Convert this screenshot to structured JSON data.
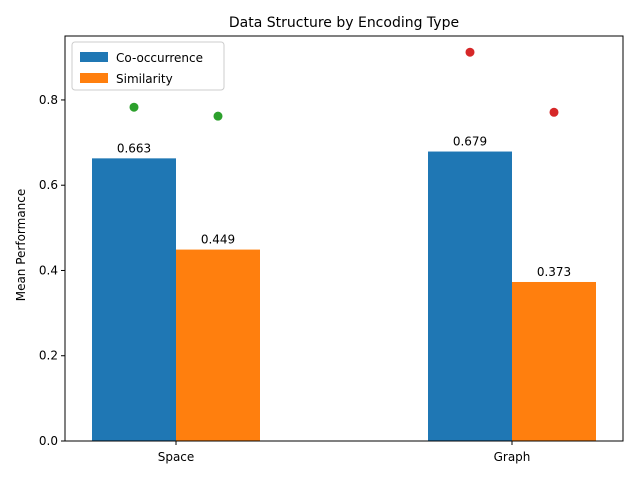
{
  "chart_data": {
    "type": "bar",
    "title": "Data Structure by Encoding Type",
    "xlabel": "",
    "ylabel": "Mean Performance",
    "categories": [
      "Space",
      "Graph"
    ],
    "series": [
      {
        "name": "Co-occurrence",
        "color": "#1f77b4",
        "values": [
          0.663,
          0.679
        ],
        "labels": [
          "0.663",
          "0.679"
        ]
      },
      {
        "name": "Similarity",
        "color": "#ff7f0e",
        "values": [
          0.449,
          0.373
        ],
        "labels": [
          "0.449",
          "0.373"
        ]
      }
    ],
    "points": [
      {
        "category": "Space",
        "series": "Co-occurrence",
        "value": 0.783,
        "color": "#2ca02c"
      },
      {
        "category": "Space",
        "series": "Similarity",
        "value": 0.762,
        "color": "#2ca02c"
      },
      {
        "category": "Graph",
        "series": "Co-occurrence",
        "value": 0.912,
        "color": "#d62728"
      },
      {
        "category": "Graph",
        "series": "Similarity",
        "value": 0.771,
        "color": "#d62728"
      }
    ],
    "ylim": [
      0,
      0.95
    ],
    "yticks": [
      {
        "value": 0.0,
        "label": "0.0"
      },
      {
        "value": 0.2,
        "label": "0.2"
      },
      {
        "value": 0.4,
        "label": "0.4"
      },
      {
        "value": 0.6,
        "label": "0.6"
      },
      {
        "value": 0.8,
        "label": "0.8"
      }
    ],
    "grid": false,
    "legend_position": "top-left"
  }
}
